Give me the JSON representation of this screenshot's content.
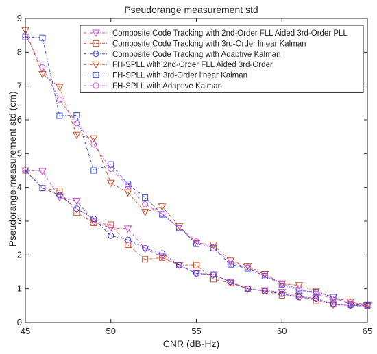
{
  "chart_data": {
    "type": "line",
    "title": "Pseudorange measurement std",
    "xlabel": "CNR (dB·Hz)",
    "ylabel": "Pseudorange measurement std (cm)",
    "xlim": [
      45,
      65
    ],
    "ylim": [
      0,
      9
    ],
    "xticks": [
      45,
      50,
      55,
      60,
      65
    ],
    "yticks": [
      0,
      1,
      2,
      3,
      4,
      5,
      6,
      7,
      8,
      9
    ],
    "grid": false,
    "legend_position": "top-right",
    "x": [
      45,
      46,
      47,
      48,
      49,
      50,
      51,
      52,
      53,
      54,
      55,
      56,
      57,
      58,
      59,
      60,
      61,
      62,
      63,
      64,
      65
    ],
    "series": [
      {
        "name": "Composite Code Tracking with 2nd-Order FLL Aided 3rd-Order PLL",
        "color": "#cc44cc",
        "marker": "triangle-down",
        "values": [
          4.5,
          4.48,
          3.7,
          3.6,
          2.98,
          2.8,
          2.78,
          2.18,
          1.95,
          1.7,
          1.45,
          1.42,
          1.2,
          1.0,
          0.95,
          0.9,
          0.78,
          0.72,
          0.52,
          0.5,
          0.48
        ]
      },
      {
        "name": "Composite Code Tracking with 3rd-Order linear Kalman",
        "color": "#d94f2a",
        "marker": "square",
        "values": [
          4.5,
          3.98,
          3.9,
          3.25,
          2.95,
          2.9,
          2.3,
          1.87,
          1.92,
          1.7,
          1.7,
          1.28,
          1.17,
          1.0,
          0.93,
          0.8,
          0.78,
          0.65,
          0.55,
          0.52,
          0.5
        ]
      },
      {
        "name": "Composite Code Tracking with Adaptive Kalman",
        "color": "#3b3fd9",
        "marker": "circle",
        "values": [
          4.5,
          3.98,
          3.77,
          3.37,
          3.07,
          2.57,
          2.45,
          2.2,
          2.05,
          1.7,
          1.45,
          1.42,
          1.2,
          1.0,
          0.93,
          0.85,
          0.75,
          0.7,
          0.55,
          0.5,
          0.48
        ]
      },
      {
        "name": "FH-SPLL with 2nd-Order FLL Aided 3rd-Order",
        "color": "#c8502a",
        "marker": "triangle-down",
        "values": [
          8.65,
          7.35,
          6.97,
          5.55,
          5.45,
          4.13,
          3.85,
          3.27,
          3.43,
          2.85,
          2.35,
          2.3,
          1.83,
          1.67,
          1.43,
          1.15,
          1.1,
          0.93,
          0.75,
          0.62,
          0.52
        ]
      },
      {
        "name": "FH-SPLL with 3rd-Order linear Kalman",
        "color": "#3b4fd9",
        "marker": "square",
        "values": [
          8.45,
          8.43,
          6.12,
          6.13,
          4.5,
          4.68,
          4.1,
          3.7,
          3.2,
          2.8,
          2.33,
          2.2,
          1.72,
          1.6,
          1.37,
          1.13,
          0.95,
          0.9,
          0.75,
          0.55,
          0.52
        ]
      },
      {
        "name": "FH-SPLL with Adaptive Kalman",
        "color": "#c858d8",
        "marker": "circle",
        "values": [
          8.5,
          7.55,
          6.6,
          5.9,
          5.27,
          4.55,
          4.05,
          3.5,
          3.22,
          2.8,
          2.4,
          2.2,
          1.78,
          1.63,
          1.4,
          1.15,
          1.0,
          0.85,
          0.7,
          0.6,
          0.5
        ]
      }
    ]
  }
}
